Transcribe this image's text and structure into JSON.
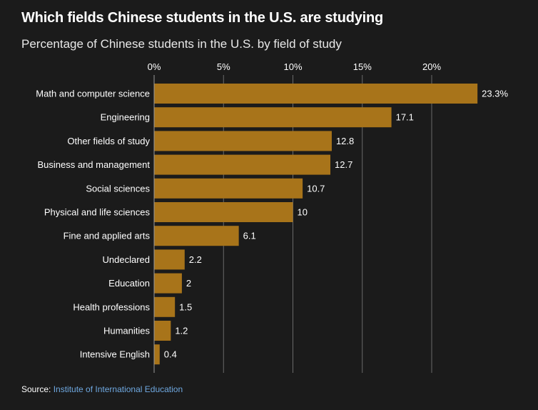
{
  "title": "Which fields Chinese students in the U.S. are studying",
  "subtitle": "Percentage of Chinese students in the U.S. by field of study",
  "source": {
    "label": "Source:",
    "link_text": "Institute of International Education"
  },
  "colors": {
    "background": "#1b1b1b",
    "bar": "#a8741a",
    "gridline": "#6a6a6a",
    "link": "#6fa8e0"
  },
  "chart_data": {
    "type": "bar",
    "orientation": "horizontal",
    "title": "Which fields Chinese students in the U.S. are studying",
    "subtitle": "Percentage of Chinese students in the U.S. by field of study",
    "xlabel": "",
    "ylabel": "",
    "xlim": [
      0,
      20
    ],
    "xticks": [
      0,
      5,
      10,
      15,
      20
    ],
    "xtick_labels": [
      "0%",
      "5%",
      "10%",
      "15%",
      "20%"
    ],
    "grid": true,
    "legend": "none",
    "categories": [
      "Math and computer science",
      "Engineering",
      "Other fields of study",
      "Business and management",
      "Social sciences",
      "Physical and life sciences",
      "Fine and applied arts",
      "Undeclared",
      "Education",
      "Health professions",
      "Humanities",
      "Intensive English"
    ],
    "values": [
      23.3,
      17.1,
      12.8,
      12.7,
      10.7,
      10,
      6.1,
      2.2,
      2,
      1.5,
      1.2,
      0.4
    ],
    "value_labels": [
      "23.3%",
      "17.1",
      "12.8",
      "12.7",
      "10.7",
      "10",
      "6.1",
      "2.2",
      "2",
      "1.5",
      "1.2",
      "0.4"
    ]
  }
}
